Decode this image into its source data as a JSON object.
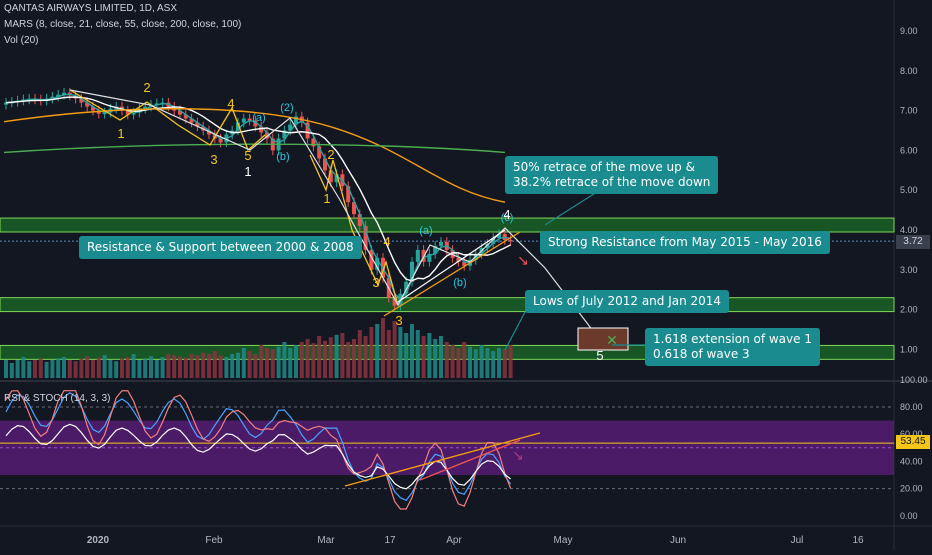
{
  "header": {
    "symbol_line": "QANTAS AIRWAYS LIMITED, 1D, ASX",
    "mars_line": "MARS (8, close, 21, close, 55, close, 200, close, 100)",
    "vol_line": "Vol (20)",
    "rsi_line": "RSI & STOCH (14, 3, 3)"
  },
  "last_price_label": "3.72",
  "rsi_value_label": "53.45",
  "colors": {
    "background": "#131722",
    "callout": "#1a8b8f",
    "zone_green": "#1f8a2a",
    "rsi_band": "#7b1fa2",
    "wave_label": "#f5c518",
    "sub_wave_label": "#26c6da"
  },
  "annotations": {
    "retrace": [
      "50% retrace of the move up &",
      "38.2% retrace of the move down"
    ],
    "support_2000_2008": "Resistance & Support between 2000 & 2008",
    "strong_resistance": "Strong Resistance from May 2015 - May 2016",
    "lows_2012_2014": "Lows of July 2012 and Jan 2014",
    "extension": [
      "1.618  extension of wave 1",
      "0.618 of wave 3"
    ]
  },
  "wave_labels": [
    {
      "text": "2",
      "kind": "wave"
    },
    {
      "text": "1",
      "kind": "wave"
    },
    {
      "text": "3",
      "kind": "wave"
    },
    {
      "text": "4",
      "kind": "wave"
    },
    {
      "text": "5",
      "kind": "wave"
    },
    {
      "text": "1",
      "kind": "major"
    },
    {
      "text": "(a)",
      "kind": "sub"
    },
    {
      "text": "(b)",
      "kind": "sub"
    },
    {
      "text": "(2)",
      "kind": "sub"
    },
    {
      "text": "2",
      "kind": "wave"
    },
    {
      "text": "1",
      "kind": "wave"
    },
    {
      "text": "4",
      "kind": "wave"
    },
    {
      "text": "3",
      "kind": "wave"
    },
    {
      "text": "3",
      "kind": "wave"
    },
    {
      "text": "(a)",
      "kind": "sub"
    },
    {
      "text": "(b)",
      "kind": "sub"
    },
    {
      "text": "(c)",
      "kind": "sub"
    },
    {
      "text": "4",
      "kind": "major"
    },
    {
      "text": "5",
      "kind": "major"
    }
  ],
  "chart_data": [
    {
      "type": "candlestick",
      "title": "QANTAS AIRWAYS LIMITED, 1D, ASX",
      "ylim": [
        0.4,
        9.4
      ],
      "y_ticks": [
        "9.00",
        "8.00",
        "7.00",
        "6.00",
        "5.00",
        "4.00",
        "3.00",
        "2.00",
        "1.00"
      ],
      "x_ticks": [
        "2020",
        "Feb",
        "Mar",
        "17",
        "Apr",
        "May",
        "Jun",
        "Jul",
        "16"
      ],
      "zones": [
        {
          "name": "strong_resistance",
          "from": 3.95,
          "to": 4.3
        },
        {
          "name": "support_2000_2008",
          "from": 1.95,
          "to": 2.3
        },
        {
          "name": "lows_2012_2014",
          "from": 0.75,
          "to": 1.1
        }
      ],
      "close": [
        7.2,
        7.22,
        7.25,
        7.28,
        7.3,
        7.28,
        7.25,
        7.3,
        7.35,
        7.4,
        7.45,
        7.38,
        7.3,
        7.2,
        7.1,
        7.0,
        6.92,
        6.95,
        7.05,
        7.1,
        7.0,
        6.9,
        6.95,
        7.05,
        7.1,
        7.15,
        7.18,
        7.2,
        7.1,
        7.0,
        6.9,
        6.8,
        6.7,
        6.6,
        6.5,
        6.4,
        6.3,
        6.2,
        6.4,
        6.5,
        6.7,
        6.8,
        6.75,
        6.6,
        6.45,
        6.3,
        6.0,
        6.3,
        6.5,
        6.65,
        6.85,
        6.7,
        6.3,
        6.1,
        5.8,
        5.5,
        5.2,
        5.4,
        5.1,
        4.7,
        4.4,
        4.1,
        3.5,
        3.0,
        3.3,
        2.8,
        2.3,
        2.1,
        2.4,
        2.7,
        3.2,
        3.5,
        3.2,
        3.4,
        3.6,
        3.7,
        3.5,
        3.3,
        3.2,
        3.1,
        3.25,
        3.4,
        3.55,
        3.65,
        3.8,
        3.9,
        3.75,
        3.72
      ],
      "volume": [
        0.3,
        0.25,
        0.3,
        0.35,
        0.28,
        0.3,
        0.32,
        0.27,
        0.3,
        0.33,
        0.35,
        0.3,
        0.28,
        0.32,
        0.36,
        0.3,
        0.34,
        0.38,
        0.3,
        0.28,
        0.32,
        0.35,
        0.4,
        0.3,
        0.33,
        0.36,
        0.3,
        0.35,
        0.4,
        0.38,
        0.36,
        0.34,
        0.4,
        0.38,
        0.42,
        0.4,
        0.45,
        0.38,
        0.35,
        0.4,
        0.42,
        0.5,
        0.45,
        0.4,
        0.55,
        0.5,
        0.48,
        0.52,
        0.6,
        0.5,
        0.55,
        0.6,
        0.65,
        0.58,
        0.7,
        0.62,
        0.68,
        0.72,
        0.75,
        0.6,
        0.65,
        0.8,
        0.7,
        0.85,
        0.9,
        1.0,
        0.8,
        0.95,
        0.85,
        0.75,
        0.9,
        0.8,
        0.7,
        0.75,
        0.65,
        0.7,
        0.6,
        0.55,
        0.5,
        0.6,
        0.52,
        0.48,
        0.55,
        0.5,
        0.45,
        0.5,
        0.48,
        0.55
      ]
    },
    {
      "type": "line",
      "title": "RSI & STOCH (14, 3, 3)",
      "ylim": [
        -8,
        108
      ],
      "y_ticks": [
        "100.00",
        "80.00",
        "60.00",
        "40.00",
        "20.00",
        "0.00"
      ],
      "band": [
        30,
        70
      ],
      "last_value": 53.45
    }
  ]
}
